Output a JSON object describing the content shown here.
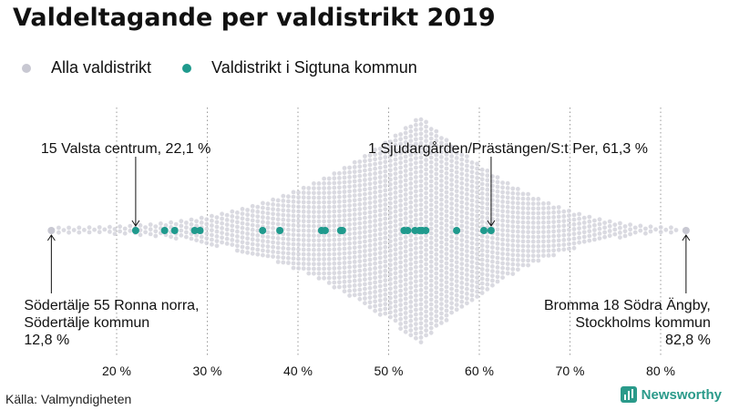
{
  "chart_data": {
    "type": "scatter",
    "subtype": "beeswarm",
    "title": "Valdeltagande per valdistrikt 2019",
    "legend": [
      {
        "label": "Alla valdistrikt",
        "color": "#c8c8d2"
      },
      {
        "label": "Valdistrikt i Sigtuna kommun",
        "color": "#1f9a8d"
      }
    ],
    "xlim": [
      12,
      84
    ],
    "x_ticks": [
      20,
      30,
      40,
      50,
      60,
      70,
      80
    ],
    "x_tick_labels": [
      "20 %",
      "30 %",
      "40 %",
      "50 %",
      "60 %",
      "70 %",
      "80 %"
    ],
    "distribution": {
      "min": 12.8,
      "max": 82.8,
      "mode": 53.5
    },
    "series": [
      {
        "name": "Valdistrikt i Sigtuna kommun",
        "values": [
          22.1,
          25.3,
          26.4,
          28.6,
          29.2,
          36.1,
          38.0,
          42.6,
          43.0,
          44.7,
          44.9,
          51.7,
          52.1,
          52.9,
          53.4,
          53.7,
          54.1,
          57.5,
          60.5,
          61.3
        ]
      }
    ],
    "highlights": [
      {
        "name": "Södertälje 55 Ronna norra",
        "value": 12.8
      },
      {
        "name": "Bromma 18 Södra Ängby",
        "value": 82.8
      }
    ],
    "annotations": [
      {
        "lines": [
          "15 Valsta centrum, 22,1 %"
        ],
        "value": 22.1,
        "position": "above",
        "anchor": "start"
      },
      {
        "lines": [
          "1 Sjudargården/Prästängen/S:t Per, 61,3 %"
        ],
        "value": 61.3,
        "position": "above",
        "anchor": "end"
      },
      {
        "lines": [
          "Södertälje 55 Ronna norra,",
          "Södertälje kommun",
          "12,8 %"
        ],
        "value": 12.8,
        "position": "below",
        "anchor": "start"
      },
      {
        "lines": [
          "Bromma 18 Södra Ängby,",
          "Stockholms kommun",
          "82,8 %"
        ],
        "value": 82.8,
        "position": "below",
        "anchor": "end"
      }
    ]
  },
  "footer": {
    "source": "Källa: Valmyndigheten",
    "brand": "Newsworthy"
  }
}
